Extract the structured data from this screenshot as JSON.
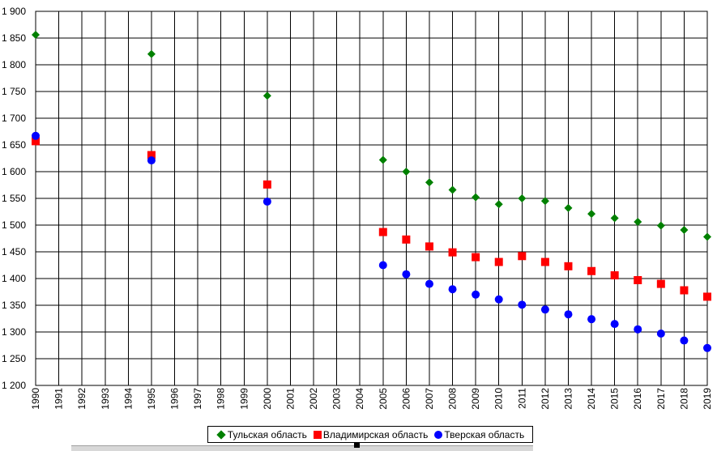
{
  "chart_data": {
    "type": "scatter",
    "x": [
      1990,
      1991,
      1992,
      1993,
      1994,
      1995,
      1996,
      1997,
      1998,
      1999,
      2000,
      2001,
      2002,
      2003,
      2004,
      2005,
      2006,
      2007,
      2008,
      2009,
      2010,
      2011,
      2012,
      2013,
      2014,
      2015,
      2016,
      2017,
      2018,
      2019
    ],
    "x_tick_labels": [
      "1990",
      "1991",
      "1992",
      "1993",
      "1994",
      "1995",
      "1996",
      "1997",
      "1998",
      "1999",
      "2000",
      "2001",
      "2002",
      "2003",
      "2004",
      "2005",
      "2006",
      "2007",
      "2008",
      "2009",
      "2010",
      "2011",
      "2012",
      "2013",
      "2014",
      "2015",
      "2016",
      "2017",
      "2018",
      "2019"
    ],
    "ylim": [
      1200,
      1900
    ],
    "y_ticks": [
      1200,
      1250,
      1300,
      1350,
      1400,
      1450,
      1500,
      1550,
      1600,
      1650,
      1700,
      1750,
      1800,
      1850,
      1900
    ],
    "y_tick_labels": [
      "1 200",
      "1 250",
      "1 300",
      "1 350",
      "1 400",
      "1 450",
      "1 500",
      "1 550",
      "1 600",
      "1 650",
      "1 700",
      "1 750",
      "1 800",
      "1 850",
      "1 900"
    ],
    "grid": true,
    "legend_position": "bottom",
    "series": [
      {
        "name": "Тульская область",
        "marker": "diamond",
        "color": "#008000",
        "points": [
          [
            1990,
            1856
          ],
          [
            1995,
            1820
          ],
          [
            2000,
            1742
          ],
          [
            2005,
            1622
          ],
          [
            2006,
            1600
          ],
          [
            2007,
            1580
          ],
          [
            2008,
            1566
          ],
          [
            2009,
            1552
          ],
          [
            2010,
            1539
          ],
          [
            2011,
            1550
          ],
          [
            2012,
            1545
          ],
          [
            2013,
            1532
          ],
          [
            2014,
            1521
          ],
          [
            2015,
            1513
          ],
          [
            2016,
            1506
          ],
          [
            2017,
            1499
          ],
          [
            2018,
            1491
          ],
          [
            2019,
            1478
          ]
        ]
      },
      {
        "name": "Владимирская область",
        "marker": "square",
        "color": "#ff0000",
        "points": [
          [
            1990,
            1657
          ],
          [
            1995,
            1631
          ],
          [
            2000,
            1576
          ],
          [
            2005,
            1487
          ],
          [
            2006,
            1473
          ],
          [
            2007,
            1460
          ],
          [
            2008,
            1449
          ],
          [
            2009,
            1440
          ],
          [
            2010,
            1431
          ],
          [
            2011,
            1442
          ],
          [
            2012,
            1431
          ],
          [
            2013,
            1423
          ],
          [
            2014,
            1414
          ],
          [
            2015,
            1406
          ],
          [
            2016,
            1397
          ],
          [
            2017,
            1390
          ],
          [
            2018,
            1378
          ],
          [
            2019,
            1366
          ]
        ]
      },
      {
        "name": "Тверская область",
        "marker": "circle",
        "color": "#0000ff",
        "points": [
          [
            1990,
            1667
          ],
          [
            1995,
            1621
          ],
          [
            2000,
            1544
          ],
          [
            2005,
            1425
          ],
          [
            2006,
            1408
          ],
          [
            2007,
            1390
          ],
          [
            2008,
            1380
          ],
          [
            2009,
            1370
          ],
          [
            2010,
            1361
          ],
          [
            2011,
            1351
          ],
          [
            2012,
            1342
          ],
          [
            2013,
            1333
          ],
          [
            2014,
            1324
          ],
          [
            2015,
            1315
          ],
          [
            2016,
            1305
          ],
          [
            2017,
            1297
          ],
          [
            2018,
            1284
          ],
          [
            2019,
            1270
          ]
        ]
      }
    ]
  }
}
